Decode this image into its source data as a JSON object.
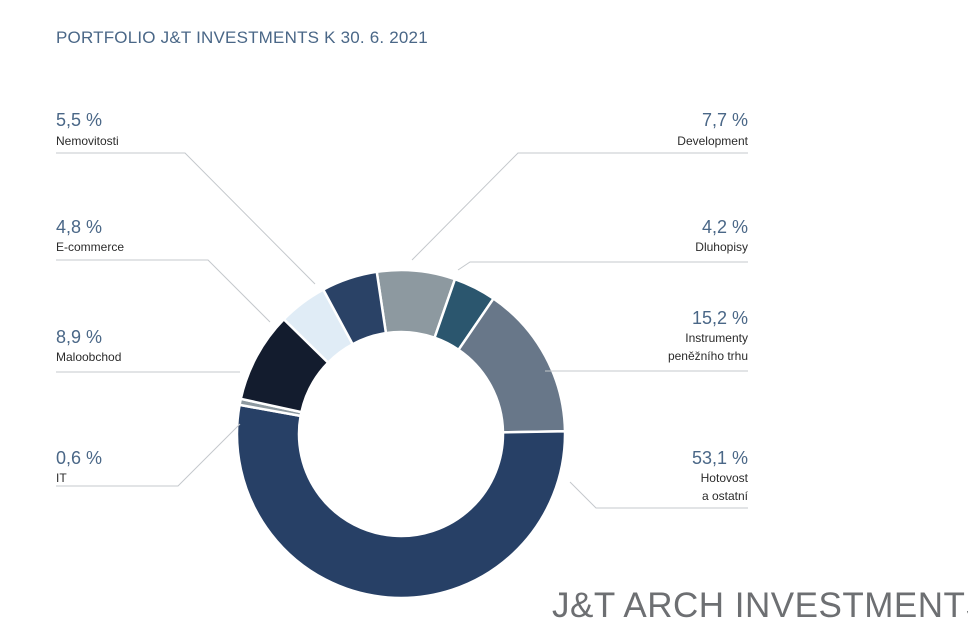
{
  "chart_data": {
    "type": "donut",
    "title": "PORTFOLIO J&T INVESTMENTS K 30. 6. 2021",
    "slices": [
      {
        "id": "development",
        "pct_label": "7,7 %",
        "value": 7.7,
        "label": "Development",
        "color": "#8d99a0"
      },
      {
        "id": "dluhopisy",
        "pct_label": "4,2 %",
        "value": 4.2,
        "label": "Dluhopisy",
        "color": "#2b566e"
      },
      {
        "id": "instrumenty",
        "pct_label": "15,2 %",
        "value": 15.2,
        "label": "Instrumenty peněžního trhu",
        "label_lines": [
          "Instrumenty",
          "peněžního trhu"
        ],
        "color": "#687789"
      },
      {
        "id": "hotovost",
        "pct_label": "53,1 %",
        "value": 53.1,
        "label": "Hotovost a ostatní",
        "label_lines": [
          "Hotovost",
          "a ostatní"
        ],
        "color": "#274066"
      },
      {
        "id": "it",
        "pct_label": "0,6 %",
        "value": 0.6,
        "label": "IT",
        "color": "#8d99a0"
      },
      {
        "id": "maloobchod",
        "pct_label": "8,9 %",
        "value": 8.9,
        "label": "Maloobchod",
        "color": "#131c2e"
      },
      {
        "id": "ecommerce",
        "pct_label": "4,8 %",
        "value": 4.8,
        "label": "E-commerce",
        "color": "#e0ecf6"
      },
      {
        "id": "nemovitosti",
        "pct_label": "5,5 %",
        "value": 5.5,
        "label": "Nemovitosti",
        "color": "#2a4266"
      }
    ]
  },
  "brand": {
    "text": "J&T ARCH INVESTMENTS"
  }
}
